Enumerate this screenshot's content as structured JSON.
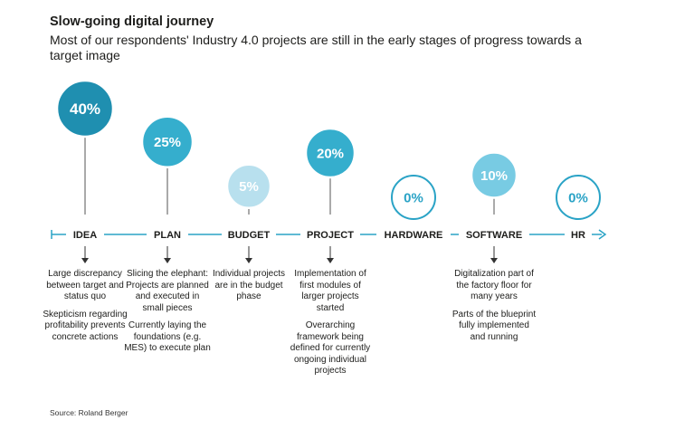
{
  "header": {
    "title": "Slow-going digital journey",
    "subtitle": "Most of our respondents' Industry 4.0 projects are still in the early stages of progress towards a target image"
  },
  "source": "Source: Roland Berger",
  "colors": {
    "axis": "#2aa3c6",
    "dark": "#1f8fb0",
    "mid": "#35aecd",
    "light": "#b8e0ee",
    "sky": "#78cbe3",
    "outline": "#2aa3c6",
    "text": "#1d1d1b"
  },
  "chart_data": {
    "type": "timeline",
    "title": "Slow-going digital journey",
    "unit": "%",
    "categories": [
      "IDEA",
      "PLAN",
      "BUDGET",
      "PROJECT",
      "HARDWARE",
      "SOFTWARE",
      "HR"
    ],
    "values": [
      40,
      25,
      5,
      20,
      0,
      10,
      0
    ],
    "labels": [
      "40%",
      "25%",
      "5%",
      "20%",
      "0%",
      "10%",
      "0%"
    ],
    "descriptions": [
      [
        "Large discrepancy between target and status quo",
        "Skepticism regarding profitability prevents concrete actions"
      ],
      [
        "Slicing the elephant: Projects are planned and executed in small pieces",
        "Currently laying the foundations (e.g. MES) to execute plan"
      ],
      [
        "Individual projects are in the budget phase"
      ],
      [
        "Implementation of first modules of larger projects started",
        "Overarching framework being defined for currently ongoing individual projects"
      ],
      [],
      [
        "Digitalization part of the factory floor for many years",
        "Parts of the blueprint fully implemented and running"
      ],
      []
    ]
  }
}
